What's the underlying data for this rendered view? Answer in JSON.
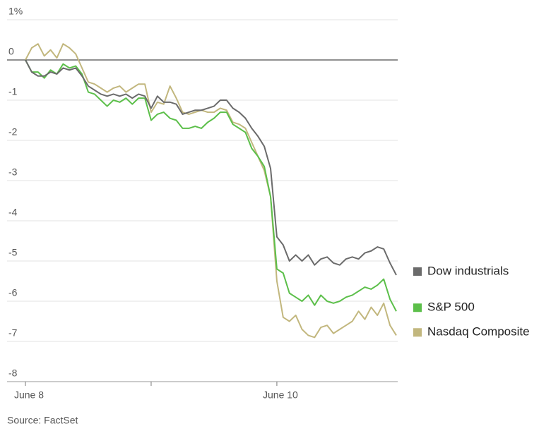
{
  "chart_data": {
    "type": "line",
    "categories": [
      "June 8",
      null,
      null,
      null,
      null,
      null,
      null,
      null,
      null,
      null,
      null,
      null,
      null,
      null,
      null,
      null,
      null,
      null,
      null,
      null,
      null,
      null,
      null,
      null,
      null,
      null,
      null,
      null,
      null,
      null,
      null,
      null,
      null,
      null,
      null,
      null,
      null,
      null,
      null,
      null,
      "June 10",
      null,
      null,
      null,
      null,
      null,
      null,
      null,
      null,
      null,
      null,
      null,
      null,
      null,
      null,
      null,
      null,
      null,
      null,
      null
    ],
    "xticks": [
      0,
      20,
      40
    ],
    "series": [
      {
        "name": "Dow industrials",
        "color": "#6b6b6b",
        "values": [
          0,
          -0.3,
          -0.4,
          -0.4,
          -0.3,
          -0.35,
          -0.2,
          -0.25,
          -0.2,
          -0.4,
          -0.65,
          -0.75,
          -0.85,
          -0.9,
          -0.85,
          -0.9,
          -0.85,
          -0.95,
          -0.85,
          -0.9,
          -1.2,
          -0.9,
          -1.05,
          -1.05,
          -1.1,
          -1.35,
          -1.3,
          -1.25,
          -1.25,
          -1.2,
          -1.15,
          -1.0,
          -1.0,
          -1.2,
          -1.3,
          -1.45,
          -1.7,
          -1.9,
          -2.15,
          -2.7,
          -4.4,
          -4.6,
          -5.0,
          -4.85,
          -5.0,
          -4.85,
          -5.1,
          -4.95,
          -4.9,
          -5.05,
          -5.1,
          -4.95,
          -4.9,
          -4.95,
          -4.8,
          -4.75,
          -4.65,
          -4.7,
          -5.05,
          -5.35
        ]
      },
      {
        "name": "S&P 500",
        "color": "#5cbf4a",
        "values": [
          0,
          -0.3,
          -0.3,
          -0.45,
          -0.25,
          -0.35,
          -0.1,
          -0.2,
          -0.15,
          -0.35,
          -0.8,
          -0.85,
          -1.0,
          -1.15,
          -1.0,
          -1.05,
          -0.95,
          -1.1,
          -0.95,
          -0.95,
          -1.5,
          -1.35,
          -1.3,
          -1.45,
          -1.5,
          -1.7,
          -1.7,
          -1.65,
          -1.7,
          -1.55,
          -1.45,
          -1.3,
          -1.3,
          -1.6,
          -1.7,
          -1.8,
          -2.2,
          -2.4,
          -2.65,
          -3.4,
          -5.2,
          -5.3,
          -5.8,
          -5.9,
          -6.0,
          -5.85,
          -6.1,
          -5.85,
          -6.0,
          -6.05,
          -6.0,
          -5.9,
          -5.85,
          -5.75,
          -5.65,
          -5.7,
          -5.6,
          -5.45,
          -5.95,
          -6.25
        ]
      },
      {
        "name": "Nasdaq Composite",
        "color": "#c2b77e",
        "values": [
          0,
          0.3,
          0.4,
          0.1,
          0.25,
          0.05,
          0.4,
          0.3,
          0.15,
          -0.2,
          -0.55,
          -0.6,
          -0.7,
          -0.8,
          -0.7,
          -0.65,
          -0.8,
          -0.7,
          -0.6,
          -0.6,
          -1.3,
          -1.05,
          -1.1,
          -0.65,
          -0.95,
          -1.3,
          -1.35,
          -1.3,
          -1.25,
          -1.3,
          -1.3,
          -1.2,
          -1.25,
          -1.55,
          -1.6,
          -1.7,
          -2.05,
          -2.4,
          -2.75,
          -3.4,
          -5.5,
          -6.4,
          -6.5,
          -6.35,
          -6.7,
          -6.85,
          -6.9,
          -6.65,
          -6.6,
          -6.8,
          -6.7,
          -6.6,
          -6.5,
          -6.25,
          -6.45,
          -6.15,
          -6.35,
          -6.05,
          -6.6,
          -6.85
        ]
      }
    ],
    "ylim": [
      -8,
      1
    ],
    "yticks": [
      {
        "value": 1,
        "label": "1%"
      },
      0,
      -1,
      -2,
      -3,
      -4,
      -5,
      -6,
      -7,
      -8
    ],
    "grid": true,
    "legend": "right",
    "source": "Source: FactSet"
  }
}
